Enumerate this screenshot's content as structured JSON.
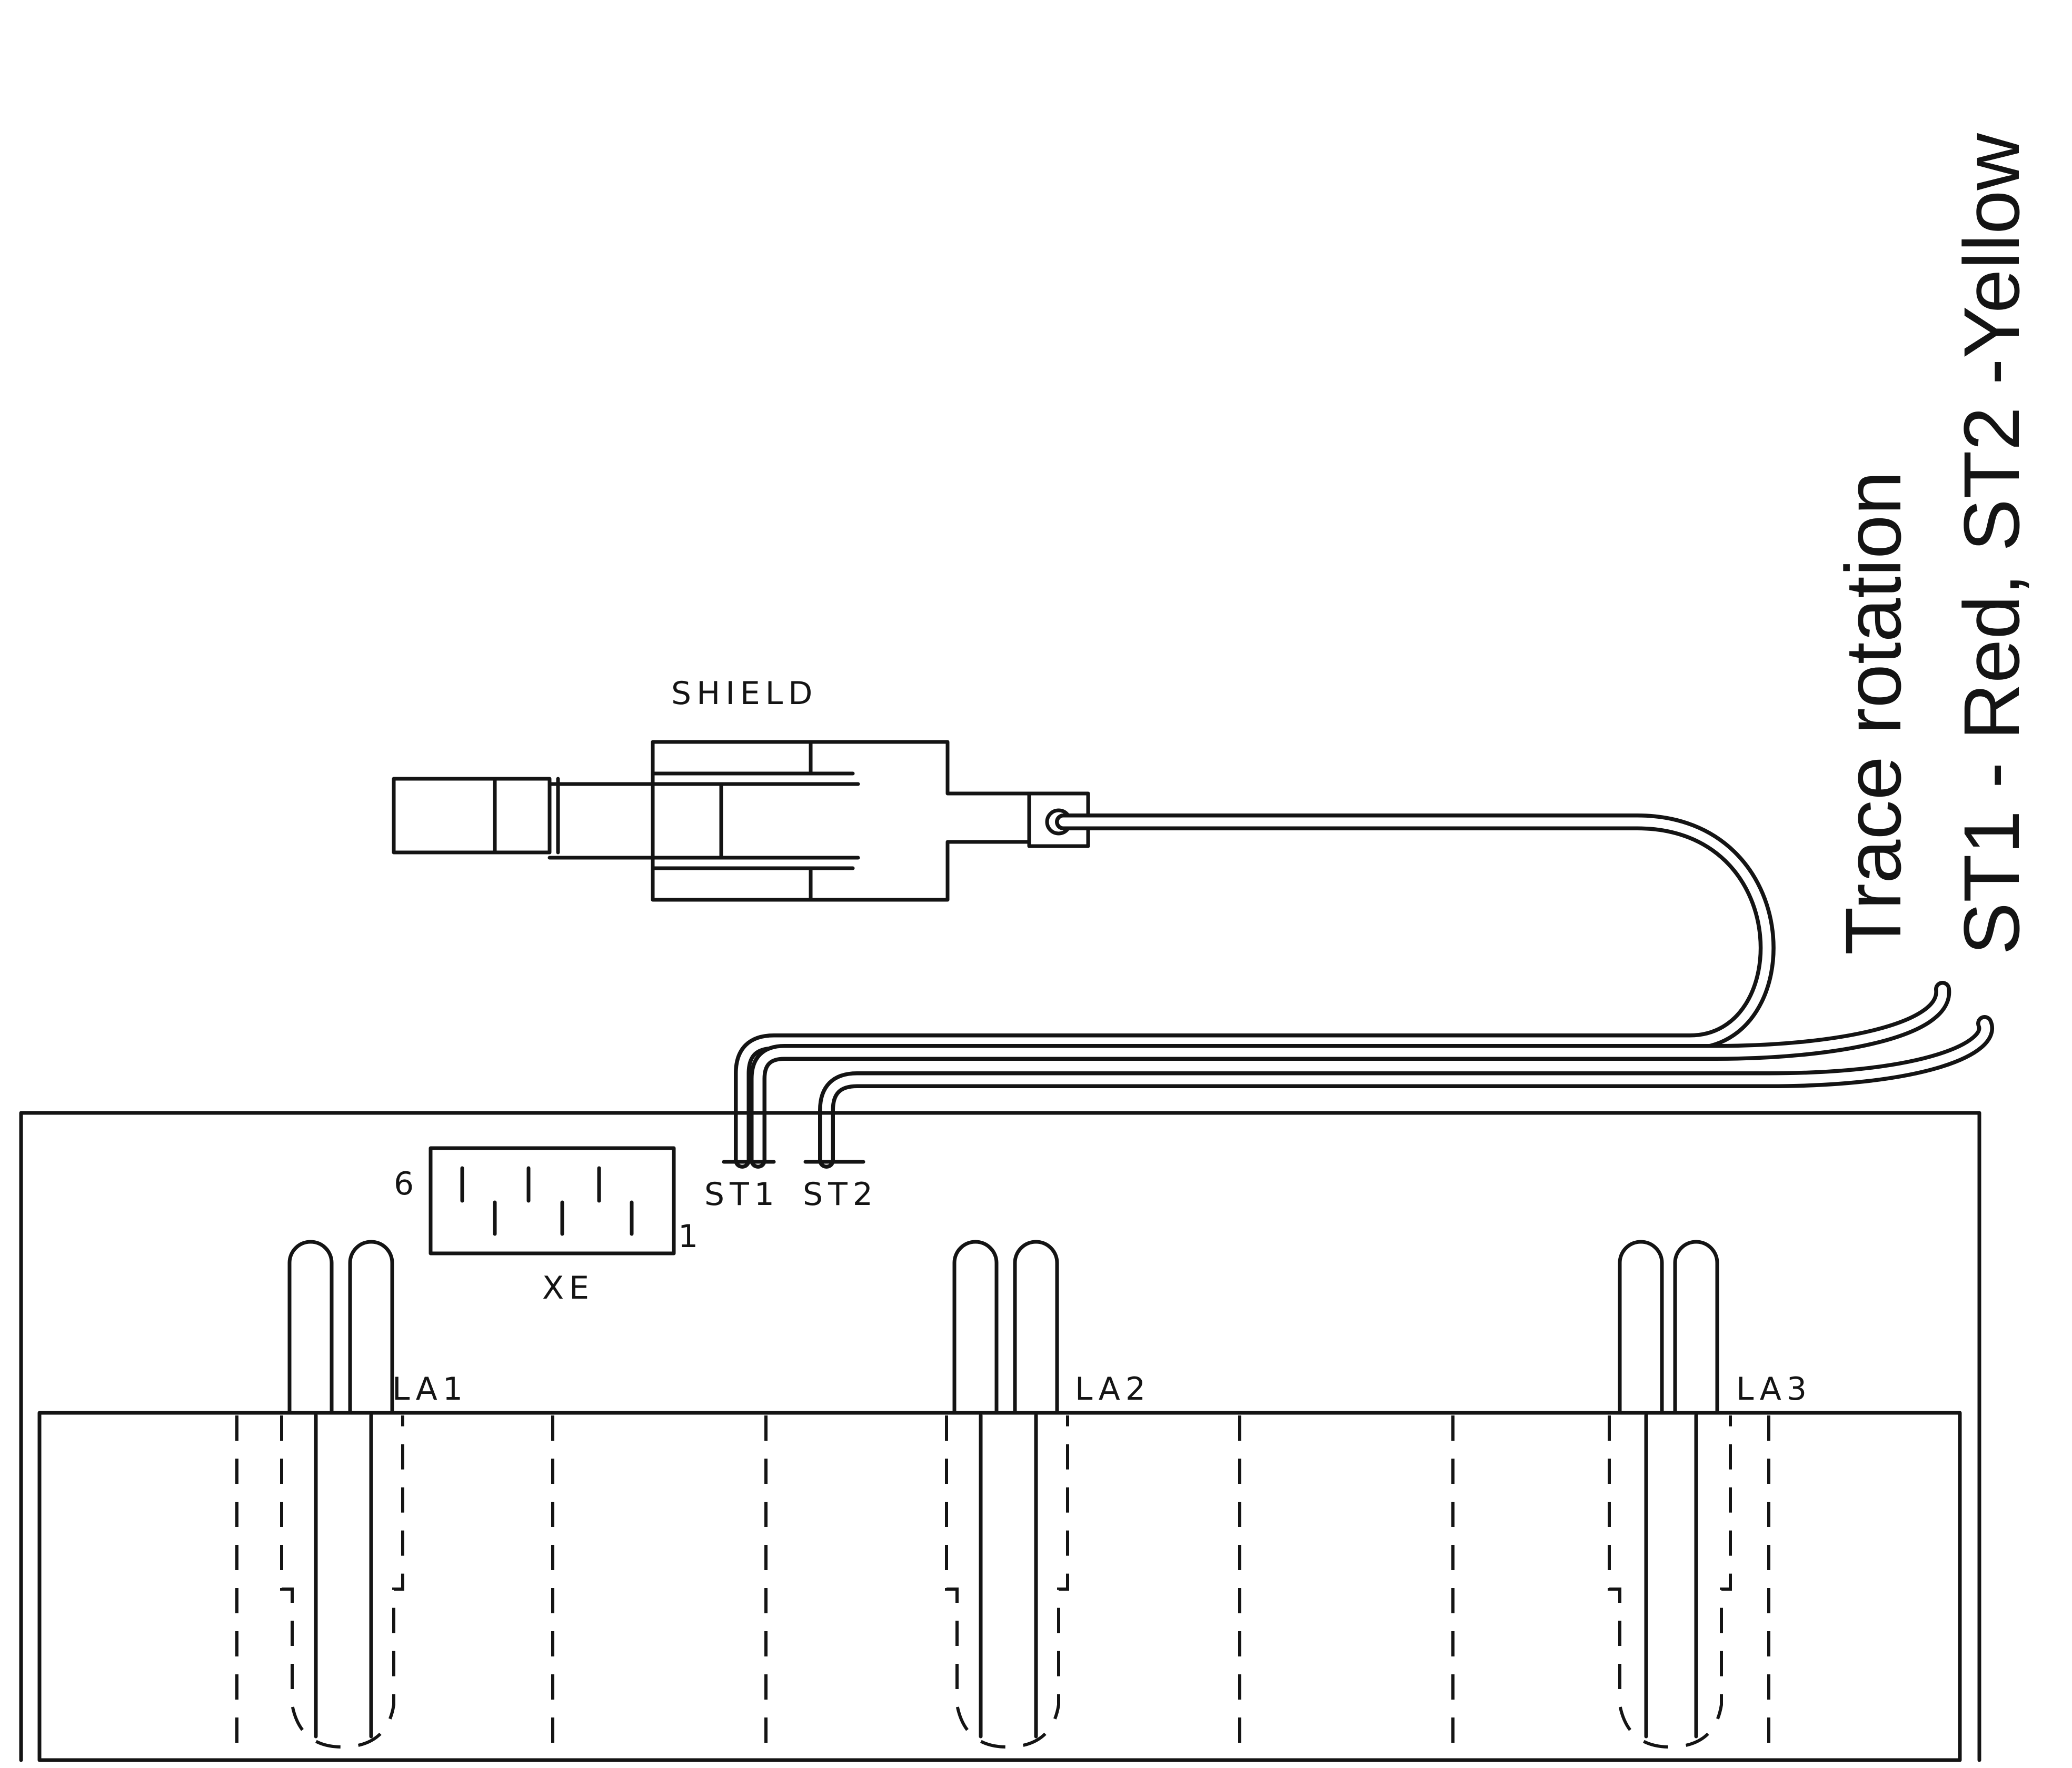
{
  "labels": {
    "shield": "SHIELD",
    "xe": "XE",
    "xe_pin_high": "6",
    "xe_pin_low": "1",
    "st1": "ST1",
    "st2": "ST2",
    "la1": "LA1",
    "la2": "LA2",
    "la3": "LA3"
  },
  "note": {
    "line1": "Trace rotation",
    "line2": "ST1 - Red, ST2 -Yellow"
  }
}
